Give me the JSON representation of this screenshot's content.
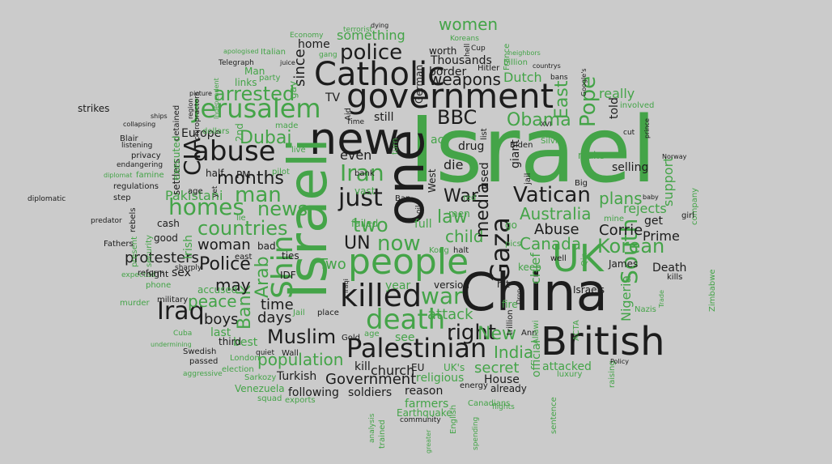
{
  "colors": {
    "background": "#cbcbcb",
    "dark": "#1c1c1c",
    "green": "#44a448"
  },
  "words": [
    {
      "t": "Israel",
      "c": 1
    },
    {
      "t": "China",
      "c": 0
    },
    {
      "t": "British",
      "c": 0
    },
    {
      "t": "people",
      "c": 1
    },
    {
      "t": "government",
      "c": 0
    },
    {
      "t": "new",
      "c": 0
    },
    {
      "t": "one",
      "c": 0
    },
    {
      "t": "Israeli",
      "c": 1
    },
    {
      "t": "Catholic",
      "c": 0
    },
    {
      "t": "killed",
      "c": 0
    },
    {
      "t": "Palestinian",
      "c": 0
    },
    {
      "t": "Jerusalem",
      "c": 1
    },
    {
      "t": "abuse",
      "c": 0
    },
    {
      "t": "UK",
      "c": 1
    },
    {
      "t": "Gaza",
      "c": 0
    },
    {
      "t": "death",
      "c": 1
    },
    {
      "t": "war",
      "c": 1
    },
    {
      "t": "just",
      "c": 0
    },
    {
      "t": "Vatican",
      "c": 0
    },
    {
      "t": "Iraq",
      "c": 0
    },
    {
      "t": "Muslim",
      "c": 0
    },
    {
      "t": "police",
      "c": 0
    },
    {
      "t": "South",
      "c": 1
    },
    {
      "t": "right",
      "c": 0
    },
    {
      "t": "Korean",
      "c": 1
    },
    {
      "t": "Pope",
      "c": 1
    },
    {
      "t": "homes",
      "c": 1
    },
    {
      "t": "man",
      "c": 1
    },
    {
      "t": "news",
      "c": 1
    },
    {
      "t": "countries",
      "c": 1
    },
    {
      "t": "CIA",
      "c": 0
    },
    {
      "t": "Iran",
      "c": 1
    },
    {
      "t": "now",
      "c": 1
    },
    {
      "t": "law",
      "c": 1
    },
    {
      "t": "child",
      "c": 1
    },
    {
      "t": "media",
      "c": 0
    },
    {
      "t": "Australia",
      "c": 1
    },
    {
      "t": "two",
      "c": 1
    },
    {
      "t": "Shin",
      "c": 1
    },
    {
      "t": "arrested",
      "c": 1
    },
    {
      "t": "East",
      "c": 1
    },
    {
      "t": "Obama",
      "c": 1
    },
    {
      "t": "BBC",
      "c": 0
    },
    {
      "t": "weapons",
      "c": 0
    },
    {
      "t": "women",
      "c": 1
    },
    {
      "t": "months",
      "c": 0
    },
    {
      "t": "Dubai",
      "c": 1
    },
    {
      "t": "Canada",
      "c": 1
    },
    {
      "t": "India",
      "c": 1
    },
    {
      "t": "New",
      "c": 1
    },
    {
      "t": "War",
      "c": 0
    },
    {
      "t": "Abuse",
      "c": 0
    },
    {
      "t": "Corrie",
      "c": 0
    },
    {
      "t": "plans",
      "c": 1
    },
    {
      "t": "Police",
      "c": 0
    },
    {
      "t": "population",
      "c": 1
    },
    {
      "t": "Government",
      "c": 0
    },
    {
      "t": "attack",
      "c": 1
    },
    {
      "t": "time",
      "c": 0
    },
    {
      "t": "days",
      "c": 0
    },
    {
      "t": "peace",
      "c": 1
    },
    {
      "t": "woman",
      "c": 0
    },
    {
      "t": "protesters",
      "c": 0
    },
    {
      "t": "boys",
      "c": 0
    },
    {
      "t": "Bank",
      "c": 1
    },
    {
      "t": "Arab",
      "c": 1
    },
    {
      "t": "may",
      "c": 0
    },
    {
      "t": "since",
      "c": 0
    },
    {
      "t": "secret",
      "c": 1
    },
    {
      "t": "UN",
      "c": 0
    },
    {
      "t": "something",
      "c": 1
    },
    {
      "t": "Dutch",
      "c": 1
    },
    {
      "t": "Thousands",
      "c": 0
    },
    {
      "t": "border",
      "c": 0
    },
    {
      "t": "home",
      "c": 0
    },
    {
      "t": "even",
      "c": 0
    },
    {
      "t": "still",
      "c": 0
    },
    {
      "t": "drug",
      "c": 0
    },
    {
      "t": "die",
      "c": 0
    },
    {
      "t": "used",
      "c": 0
    },
    {
      "t": "giant",
      "c": 0
    },
    {
      "t": "selling",
      "c": 0
    },
    {
      "t": "really",
      "c": 1
    },
    {
      "t": "told",
      "c": 0
    },
    {
      "t": "rejects",
      "c": 1
    },
    {
      "t": "Prime",
      "c": 0
    },
    {
      "t": "Death",
      "c": 0
    },
    {
      "t": "Nigeria",
      "c": 1
    },
    {
      "t": "support",
      "c": 1
    },
    {
      "t": "get",
      "c": 0
    },
    {
      "t": "Israels",
      "c": 0
    },
    {
      "t": "James",
      "c": 0
    },
    {
      "t": "chief",
      "c": 1
    },
    {
      "t": "official",
      "c": 1
    },
    {
      "t": "attacked",
      "c": 1
    },
    {
      "t": "House",
      "c": 0
    },
    {
      "t": "already",
      "c": 0
    },
    {
      "t": "church",
      "c": 0
    },
    {
      "t": "kill",
      "c": 0
    },
    {
      "t": "EU",
      "c": 0
    },
    {
      "t": "UK's",
      "c": 1
    },
    {
      "t": "religious",
      "c": 1
    },
    {
      "t": "farmers",
      "c": 1
    },
    {
      "t": "reason",
      "c": 0
    },
    {
      "t": "soldiers",
      "c": 0
    },
    {
      "t": "following",
      "c": 0
    },
    {
      "t": "Turkish",
      "c": 0
    },
    {
      "t": "Venezuela",
      "c": 1
    },
    {
      "t": "squad",
      "c": 1
    },
    {
      "t": "exports",
      "c": 1
    },
    {
      "t": "election",
      "c": 1
    },
    {
      "t": "London",
      "c": 1
    },
    {
      "t": "Sarkozy",
      "c": 1
    },
    {
      "t": "aggressive",
      "c": 1
    },
    {
      "t": "best",
      "c": 1
    },
    {
      "t": "third",
      "c": 0
    },
    {
      "t": "last",
      "c": 1
    },
    {
      "t": "Swedish",
      "c": 0
    },
    {
      "t": "passed",
      "c": 0
    },
    {
      "t": "Cuba",
      "c": 1
    },
    {
      "t": "undermining",
      "c": 1
    },
    {
      "t": "accused",
      "c": 1
    },
    {
      "t": "phone",
      "c": 1
    },
    {
      "t": "expected",
      "c": 1
    },
    {
      "t": "military",
      "c": 0
    },
    {
      "t": "night",
      "c": 0
    },
    {
      "t": "sex",
      "c": 0
    },
    {
      "t": "IDF",
      "c": 0
    },
    {
      "t": "ties",
      "c": 0
    },
    {
      "t": "bad",
      "c": 0
    },
    {
      "t": "east",
      "c": 0
    },
    {
      "t": "Two",
      "c": 1
    },
    {
      "t": "year",
      "c": 1
    },
    {
      "t": "version",
      "c": 0
    },
    {
      "t": "Iraqi",
      "c": 0
    },
    {
      "t": "place",
      "c": 0
    },
    {
      "t": "Gold",
      "c": 0
    },
    {
      "t": "age",
      "c": 1
    },
    {
      "t": "see",
      "c": 1
    },
    {
      "t": "Wall",
      "c": 0
    },
    {
      "t": "quiet",
      "c": 0
    },
    {
      "t": "Jail",
      "c": 1
    },
    {
      "t": "good",
      "c": 0
    },
    {
      "t": "cash",
      "c": 0
    },
    {
      "t": "Pakistani",
      "c": 1
    },
    {
      "t": "half",
      "c": 0
    },
    {
      "t": "PM",
      "c": 0
    },
    {
      "t": "Europe",
      "c": 0
    },
    {
      "t": "settlers",
      "c": 0
    },
    {
      "t": "dollars",
      "c": 1
    },
    {
      "t": "2nd",
      "c": 1
    },
    {
      "t": "links",
      "c": 1
    },
    {
      "t": "Man",
      "c": 1
    },
    {
      "t": "party",
      "c": 1
    },
    {
      "t": "gay",
      "c": 1
    },
    {
      "t": "Italian",
      "c": 1
    },
    {
      "t": "apologised",
      "c": 1
    },
    {
      "t": "Telegraph",
      "c": 0
    },
    {
      "t": "juice",
      "c": 0
    },
    {
      "t": "Economy",
      "c": 1
    },
    {
      "t": "terrorist",
      "c": 1
    },
    {
      "t": "gang",
      "c": 1
    },
    {
      "t": "dying",
      "c": 0
    },
    {
      "t": "German",
      "c": 0
    },
    {
      "t": "worth",
      "c": 0
    },
    {
      "t": "Koreans",
      "c": 1
    },
    {
      "t": "hell",
      "c": 0
    },
    {
      "t": "Cup",
      "c": 0
    },
    {
      "t": "France",
      "c": 1
    },
    {
      "t": "Hitler",
      "c": 0
    },
    {
      "t": "billion",
      "c": 1
    },
    {
      "t": "neighbors",
      "c": 1
    },
    {
      "t": "countrys",
      "c": 0
    },
    {
      "t": "bans",
      "c": 0
    },
    {
      "t": "Google's",
      "c": 0
    },
    {
      "t": "XVI",
      "c": 0
    },
    {
      "t": "Biden",
      "c": 0
    },
    {
      "t": "Silvio",
      "c": 1
    },
    {
      "t": "make",
      "c": 1
    },
    {
      "t": "jail",
      "c": 0
    },
    {
      "t": "Big",
      "c": 0
    },
    {
      "t": "involved",
      "c": 1
    },
    {
      "t": "prince",
      "c": 0
    },
    {
      "t": "Norway",
      "c": 0
    },
    {
      "t": "company",
      "c": 1
    },
    {
      "t": "baby",
      "c": 0
    },
    {
      "t": "girl",
      "c": 0
    },
    {
      "t": "mine",
      "c": 1
    },
    {
      "t": "Zimbabwe",
      "c": 1
    },
    {
      "t": "kills",
      "c": 0
    },
    {
      "t": "Trade",
      "c": 1
    },
    {
      "t": "Nazis",
      "c": 1
    },
    {
      "t": "raising",
      "c": 1
    },
    {
      "t": "Policy",
      "c": 0
    },
    {
      "t": "luxury",
      "c": 1
    },
    {
      "t": "sentence",
      "c": 1
    },
    {
      "t": "Canadians",
      "c": 1
    },
    {
      "t": "flights",
      "c": 1
    },
    {
      "t": "spending",
      "c": 1
    },
    {
      "t": "English",
      "c": 1
    },
    {
      "t": "energy",
      "c": 0
    },
    {
      "t": "Earthquake",
      "c": 1
    },
    {
      "t": "community",
      "c": 0
    },
    {
      "t": "greater",
      "c": 1
    },
    {
      "t": "trained",
      "c": 1
    },
    {
      "t": "analysis",
      "c": 1
    },
    {
      "t": "trillion",
      "c": 0
    },
    {
      "t": "hit",
      "c": 0
    },
    {
      "t": "Drop",
      "c": 0
    },
    {
      "t": "fire",
      "c": 1
    },
    {
      "t": "Ann",
      "c": 0
    },
    {
      "t": "Allawi",
      "c": 1
    },
    {
      "t": "ACTA",
      "c": 1
    },
    {
      "t": "keep",
      "c": 1
    },
    {
      "t": "well",
      "c": 0
    },
    {
      "t": "go",
      "c": 1
    },
    {
      "t": "pics",
      "c": 1
    },
    {
      "t": "Qin",
      "c": 1
    },
    {
      "t": "halt",
      "c": 0
    },
    {
      "t": "Kong",
      "c": 1
    },
    {
      "t": "men",
      "c": 1
    },
    {
      "t": "red",
      "c": 1
    },
    {
      "t": "Ban",
      "c": 0
    },
    {
      "t": "oil",
      "c": 0
    },
    {
      "t": "full",
      "c": 1
    },
    {
      "t": "failed",
      "c": 1
    },
    {
      "t": "vast",
      "c": 1
    },
    {
      "t": "bank",
      "c": 0
    },
    {
      "t": "West",
      "c": 0
    },
    {
      "t": "act",
      "c": 1
    },
    {
      "t": "turn",
      "c": 1
    },
    {
      "t": "Time",
      "c": 0
    },
    {
      "t": "Aid",
      "c": 0
    },
    {
      "t": "TV",
      "c": 0
    },
    {
      "t": "list",
      "c": 0
    },
    {
      "t": "cut",
      "c": 0
    },
    {
      "t": "made",
      "c": 1
    },
    {
      "t": "live",
      "c": 1
    },
    {
      "t": "pilot",
      "c": 1
    },
    {
      "t": "yet",
      "c": 0
    },
    {
      "t": "age",
      "c": 0
    },
    {
      "t": "Irish",
      "c": 1
    },
    {
      "t": "lie",
      "c": 1
    },
    {
      "t": "security",
      "c": 1
    },
    {
      "t": "present",
      "c": 1
    },
    {
      "t": "murder",
      "c": 1
    },
    {
      "t": "reform",
      "c": 0
    },
    {
      "t": "Fathers",
      "c": 0
    },
    {
      "t": "sharply",
      "c": 0
    },
    {
      "t": "predator",
      "c": 0
    },
    {
      "t": "rebels",
      "c": 0
    },
    {
      "t": "step",
      "c": 0
    },
    {
      "t": "regulations",
      "c": 0
    },
    {
      "t": "famine",
      "c": 1
    },
    {
      "t": "diplomat",
      "c": 1
    },
    {
      "t": "endangering",
      "c": 0
    },
    {
      "t": "privacy",
      "c": 0
    },
    {
      "t": "listening",
      "c": 0
    },
    {
      "t": "Blair",
      "c": 0
    },
    {
      "t": "collapsing",
      "c": 0
    },
    {
      "t": "ships",
      "c": 0
    },
    {
      "t": "detained",
      "c": 0
    },
    {
      "t": "region",
      "c": 0
    },
    {
      "t": "executed",
      "c": 1
    },
    {
      "t": "picture",
      "c": 0
    },
    {
      "t": "chiropractors",
      "c": 0
    },
    {
      "t": "Independent",
      "c": 1
    },
    {
      "t": "strikes",
      "c": 0
    },
    {
      "t": "diplomatic",
      "c": 0
    }
  ]
}
